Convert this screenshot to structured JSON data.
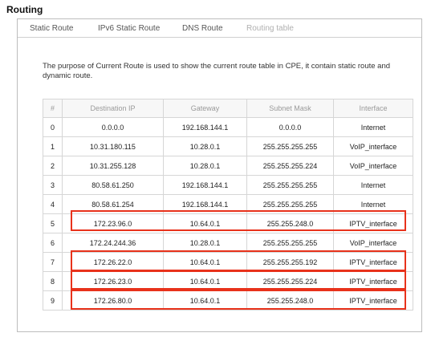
{
  "page": {
    "title": "Routing"
  },
  "tabs": [
    {
      "label": "Static Route",
      "disabled": false
    },
    {
      "label": "IPv6 Static Route",
      "disabled": false
    },
    {
      "label": "DNS Route",
      "disabled": false
    },
    {
      "label": "Routing table",
      "disabled": true
    }
  ],
  "description": "The purpose of Current Route is used to show the current route table in CPE, it contain static route and dynamic route.",
  "table": {
    "headers": [
      "#",
      "Destination IP",
      "Gateway",
      "Subnet Mask",
      "Interface"
    ],
    "rows": [
      [
        "0",
        "0.0.0.0",
        "192.168.144.1",
        "0.0.0.0",
        "Internet"
      ],
      [
        "1",
        "10.31.180.115",
        "10.28.0.1",
        "255.255.255.255",
        "VoIP_interface"
      ],
      [
        "2",
        "10.31.255.128",
        "10.28.0.1",
        "255.255.255.224",
        "VoIP_interface"
      ],
      [
        "3",
        "80.58.61.250",
        "192.168.144.1",
        "255.255.255.255",
        "Internet"
      ],
      [
        "4",
        "80.58.61.254",
        "192.168.144.1",
        "255.255.255.255",
        "Internet"
      ],
      [
        "5",
        "172.23.96.0",
        "10.64.0.1",
        "255.255.248.0",
        "IPTV_interface"
      ],
      [
        "6",
        "172.24.244.36",
        "10.28.0.1",
        "255.255.255.255",
        "VoIP_interface"
      ],
      [
        "7",
        "172.26.22.0",
        "10.64.0.1",
        "255.255.255.192",
        "IPTV_interface"
      ],
      [
        "8",
        "172.26.23.0",
        "10.64.0.1",
        "255.255.255.224",
        "IPTV_interface"
      ],
      [
        "9",
        "172.26.80.0",
        "10.64.0.1",
        "255.255.248.0",
        "IPTV_interface"
      ]
    ]
  },
  "highlight": {
    "color": "#e8321b",
    "rows": [
      5,
      7,
      8,
      9
    ]
  }
}
